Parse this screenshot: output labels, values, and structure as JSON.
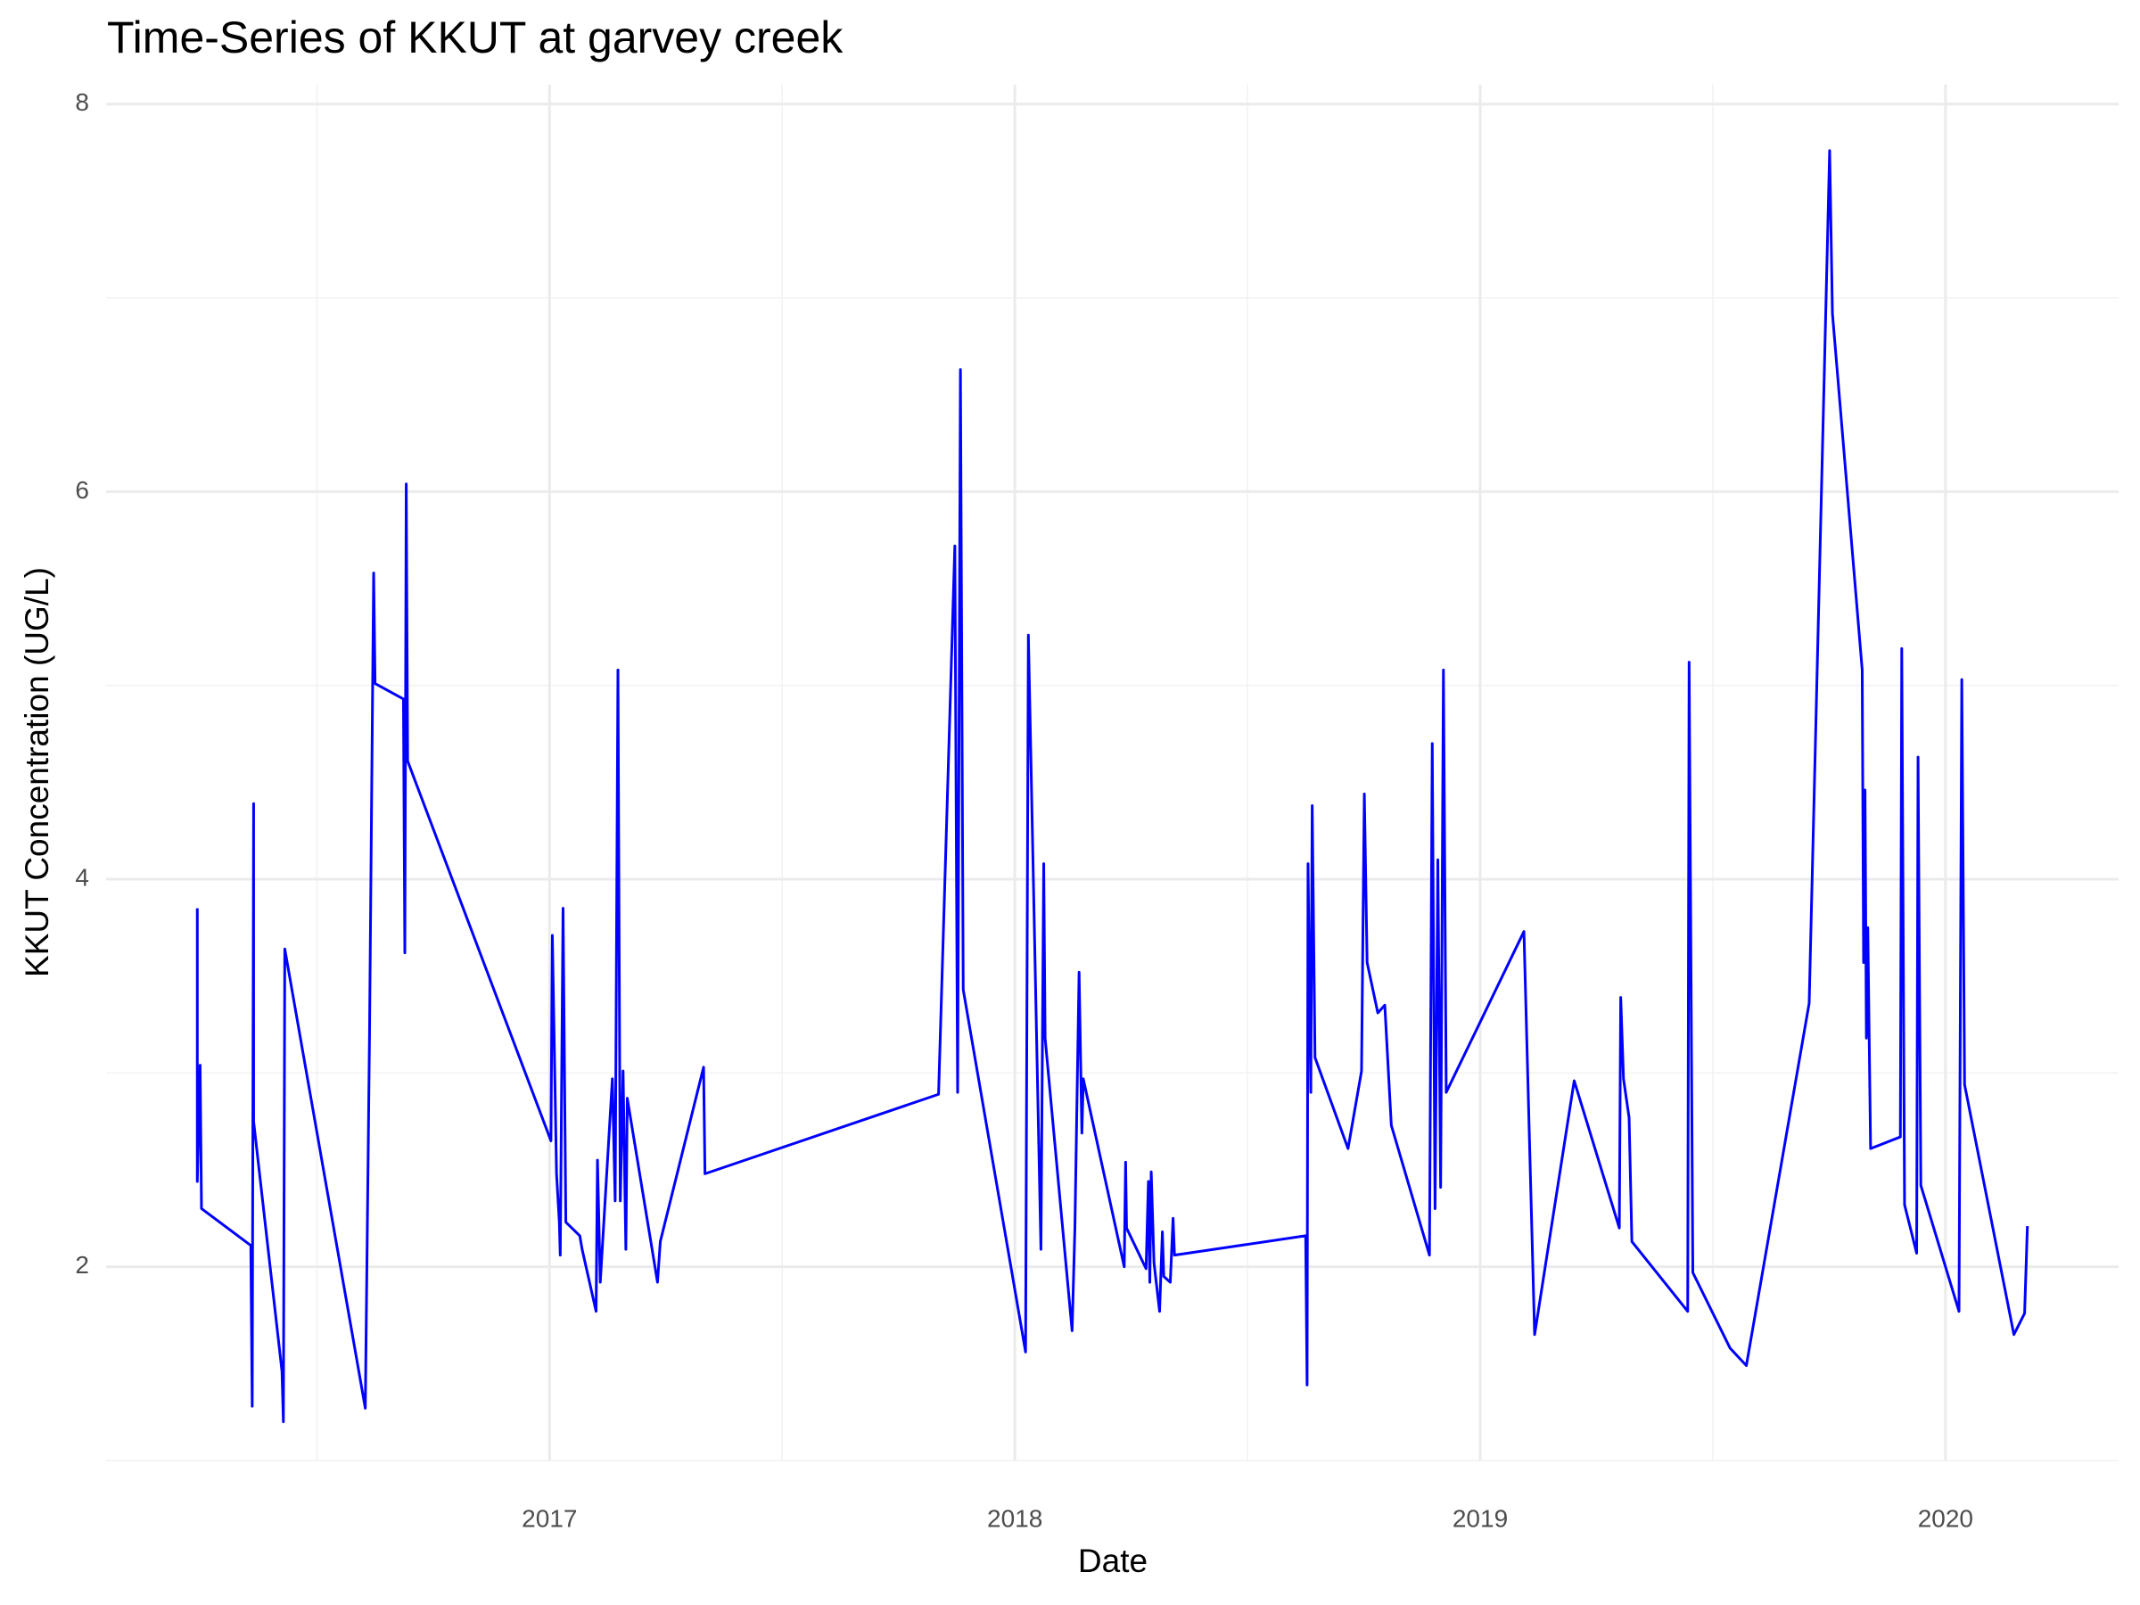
{
  "chart_data": {
    "type": "line",
    "title": "Time-Series of KKUT at garvey creek",
    "x_label": "Date",
    "y_label": "KKUT Concentration (UG/L)",
    "color": "#0000ff",
    "grid": true,
    "xlim": [
      2016.047,
      2020.372
    ],
    "xticks": [
      2017,
      2018,
      2019,
      2020
    ],
    "ylim": [
      1,
      8.1
    ],
    "yticks": [
      2,
      4,
      6,
      8
    ],
    "x": [
      2016.243,
      2016.243,
      2016.249,
      2016.252,
      2016.358,
      2016.361,
      2016.364,
      2016.364,
      2016.425,
      2016.428,
      2016.431,
      2016.604,
      2016.613,
      2016.622,
      2016.625,
      2016.686,
      2016.689,
      2016.692,
      2016.695,
      2017.003,
      2017.006,
      2017.015,
      2017.021,
      2017.023,
      2017.029,
      2017.035,
      2017.065,
      2017.07,
      2017.1,
      2017.103,
      2017.109,
      2017.135,
      2017.141,
      2017.147,
      2017.152,
      2017.158,
      2017.164,
      2017.167,
      2017.232,
      2017.238,
      2017.331,
      2017.334,
      2017.836,
      2017.871,
      2017.877,
      2017.883,
      2017.889,
      2018.023,
      2018.029,
      2018.056,
      2018.062,
      2018.065,
      2018.123,
      2018.129,
      2018.138,
      2018.144,
      2018.147,
      2018.235,
      2018.238,
      2018.24,
      2018.282,
      2018.287,
      2018.29,
      2018.293,
      2018.299,
      2018.311,
      2018.317,
      2018.32,
      2018.334,
      2018.34,
      2018.343,
      2018.625,
      2018.628,
      2018.63,
      2018.636,
      2018.639,
      2018.645,
      2018.716,
      2018.745,
      2018.751,
      2018.757,
      2018.78,
      2018.795,
      2018.809,
      2018.891,
      2018.897,
      2018.903,
      2018.909,
      2018.915,
      2018.921,
      2018.927,
      2019.094,
      2019.117,
      2019.202,
      2019.299,
      2019.302,
      2019.308,
      2019.32,
      2019.326,
      2019.446,
      2019.449,
      2019.457,
      2019.537,
      2019.572,
      2019.707,
      2019.751,
      2019.757,
      2019.821,
      2019.824,
      2019.827,
      2019.83,
      2019.833,
      2019.839,
      2019.903,
      2019.906,
      2019.912,
      2019.938,
      2019.941,
      2019.947,
      2020.029,
      2020.035,
      2020.041,
      2020.147,
      2020.17,
      2020.176
    ],
    "values": [
      3.85,
      2.44,
      3.04,
      2.3,
      2.11,
      1.28,
      4.39,
      2.75,
      1.46,
      1.2,
      3.64,
      1.27,
      3.18,
      5.58,
      5.01,
      4.93,
      3.62,
      6.04,
      4.61,
      2.65,
      3.71,
      2.48,
      2.23,
      2.06,
      3.85,
      2.23,
      2.16,
      2.09,
      1.77,
      2.55,
      1.92,
      2.97,
      2.34,
      5.08,
      2.34,
      3.01,
      2.09,
      2.87,
      1.92,
      2.13,
      3.03,
      2.48,
      2.89,
      5.72,
      2.9,
      6.63,
      3.43,
      1.56,
      5.26,
      2.09,
      4.08,
      3.18,
      1.67,
      2.2,
      3.52,
      2.69,
      2.97,
      2.0,
      2.54,
      2.2,
      1.99,
      2.44,
      1.92,
      2.49,
      2.02,
      1.77,
      2.18,
      1.95,
      1.92,
      2.25,
      2.06,
      2.16,
      1.39,
      4.08,
      2.9,
      4.38,
      3.08,
      2.61,
      3.01,
      4.44,
      3.57,
      3.31,
      3.35,
      2.73,
      2.06,
      4.7,
      2.3,
      4.1,
      2.41,
      5.08,
      2.9,
      3.73,
      1.65,
      2.96,
      2.2,
      3.39,
      2.97,
      2.77,
      2.13,
      1.77,
      5.12,
      1.97,
      1.58,
      1.49,
      3.36,
      7.76,
      6.92,
      5.08,
      3.57,
      4.46,
      3.18,
      3.75,
      2.61,
      2.67,
      5.19,
      2.32,
      2.07,
      4.63,
      2.42,
      1.77,
      5.03,
      2.94,
      1.65,
      1.76,
      2.21
    ]
  }
}
